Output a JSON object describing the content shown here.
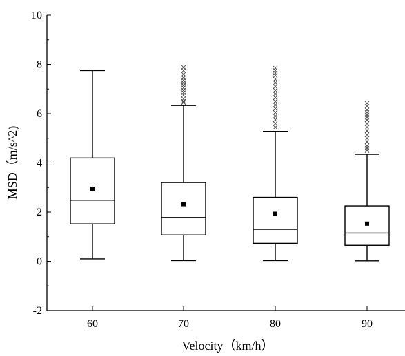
{
  "chart_data": {
    "type": "box",
    "xlabel": "Velocity（km/h）",
    "ylabel": "MSD（m/s^2)",
    "ylim": [
      -2,
      10
    ],
    "y_ticks": [
      "-2",
      "0",
      "2",
      "4",
      "6",
      "8",
      "10"
    ],
    "categories": [
      "60",
      "70",
      "80",
      "90"
    ],
    "boxes": [
      {
        "category": "60",
        "whisker_low": 0.1,
        "q1": 1.52,
        "median": 2.48,
        "q3": 4.2,
        "whisker_high": 7.75,
        "mean": 2.95,
        "outliers": []
      },
      {
        "category": "70",
        "whisker_low": 0.03,
        "q1": 1.07,
        "median": 1.78,
        "q3": 3.2,
        "whisker_high": 6.33,
        "mean": 2.32,
        "outliers": [
          6.45,
          6.5,
          6.6,
          6.75,
          6.85,
          6.95,
          7.05,
          7.15,
          7.25,
          7.35,
          7.45,
          7.6,
          7.75,
          7.88
        ]
      },
      {
        "category": "80",
        "whisker_low": 0.03,
        "q1": 0.73,
        "median": 1.3,
        "q3": 2.6,
        "whisker_high": 5.28,
        "mean": 1.93,
        "outliers": [
          5.45,
          5.6,
          5.75,
          5.9,
          6.05,
          6.2,
          6.35,
          6.5,
          6.65,
          6.8,
          6.95,
          7.1,
          7.25,
          7.4,
          7.55,
          7.65,
          7.75,
          7.85
        ]
      },
      {
        "category": "90",
        "whisker_low": 0.02,
        "q1": 0.65,
        "median": 1.15,
        "q3": 2.25,
        "whisker_high": 4.35,
        "mean": 1.53,
        "outliers": [
          4.5,
          4.6,
          4.7,
          4.85,
          5.0,
          5.15,
          5.3,
          5.45,
          5.6,
          5.75,
          5.85,
          5.95,
          6.05,
          6.15,
          6.3,
          6.42
        ]
      }
    ],
    "grid": false,
    "legend": "none"
  }
}
